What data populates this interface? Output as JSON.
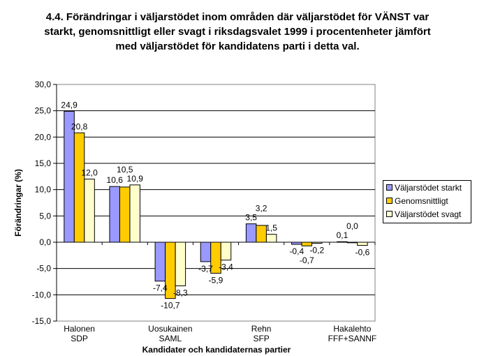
{
  "chart_data": {
    "type": "bar",
    "title": "4.4. Förändringar i väljarstödet inom områden där väljarstödet för VÄNST var starkt, genomsnittligt eller svagt i riksdagsvalet 1999 i procentenheter jämfört med väljarstödet för kandidatens parti i detta val.",
    "xlabel": "Kandidater och kandidaternas partier",
    "ylabel": "Förändringar (%)",
    "ylim": [
      -15,
      30
    ],
    "yticks": [
      "-15,0",
      "-10,0",
      "-5,0",
      "0,0",
      "5,0",
      "10,0",
      "15,0",
      "20,0",
      "25,0",
      "30,0"
    ],
    "categories": [
      [
        "Halonen",
        "SDP"
      ],
      [
        "",
        ""
      ],
      [
        "Uosukainen",
        "SAML"
      ],
      [
        "",
        ""
      ],
      [
        "Rehn",
        "SFP"
      ],
      [
        "",
        ""
      ],
      [
        "Hakalehto",
        "FFF+SANNF"
      ]
    ],
    "series": [
      {
        "name": "Väljarstödet starkt",
        "color": "#9999FF",
        "values": [
          24.9,
          10.6,
          -7.4,
          -3.7,
          3.5,
          -0.4,
          0.1
        ],
        "labels": [
          "24,9",
          "10,6",
          "-7,4",
          "-3,7",
          "3,5",
          "-0,4",
          "0,1"
        ]
      },
      {
        "name": "Genomsnittligt",
        "color": "#FFCC00",
        "values": [
          20.8,
          10.5,
          -10.7,
          -5.9,
          3.2,
          -0.7,
          0.0
        ],
        "labels": [
          "20,8",
          "10,5",
          "-10,7",
          "-5,9",
          "3,2",
          "-0,7",
          "0,0"
        ]
      },
      {
        "name": "Väljarstödet svagt",
        "color": "#FFFFCC",
        "values": [
          12.0,
          10.9,
          -8.3,
          -3.4,
          1.5,
          -0.2,
          -0.6
        ],
        "labels": [
          "12,0",
          "10,9",
          "-8,3",
          "-3,4",
          "1,5",
          "-0,2",
          "-0,6"
        ]
      }
    ],
    "legend": "right",
    "grid": true
  }
}
